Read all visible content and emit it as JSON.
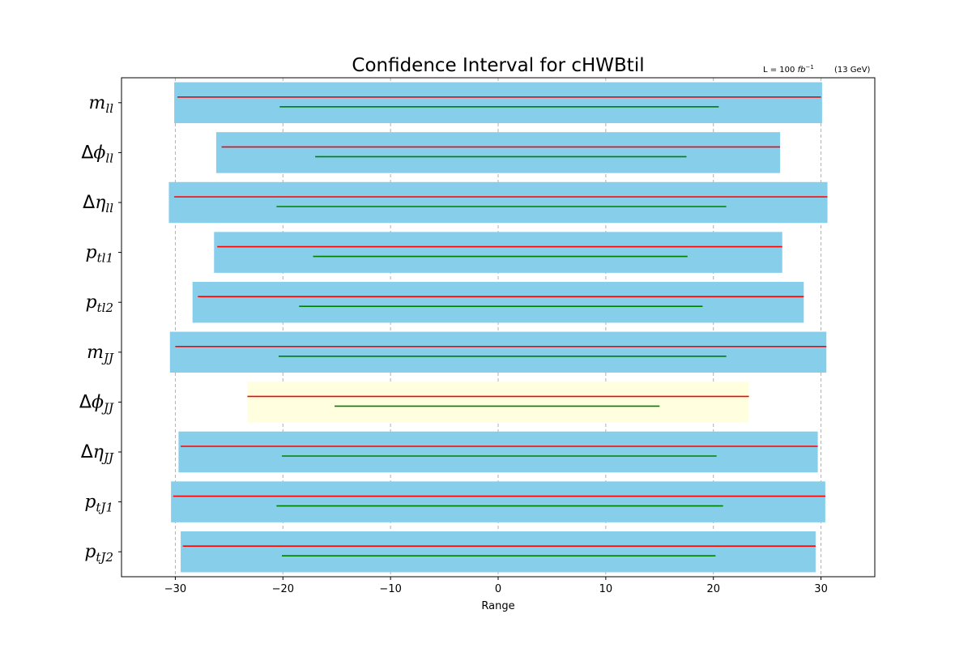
{
  "chart_data": {
    "type": "bar",
    "title": "Confidence Interval for cHWBtil",
    "xlabel": "Range",
    "note": {
      "luminosity_prefix": "L = 100 ",
      "luminosity_unit": "fb",
      "luminosity_exp": "−1",
      "energy": "(13 GeV)"
    },
    "xlim": [
      -35,
      35
    ],
    "xticks": [
      -30,
      -20,
      -10,
      0,
      10,
      20,
      30
    ],
    "xtick_labels": [
      "−30",
      "−20",
      "−10",
      "0",
      "10",
      "20",
      "30"
    ],
    "grid": "x-dashed",
    "colors": {
      "band": "#87ceeb",
      "band_highlight": "#ffffe0",
      "red_line": "#ff0000",
      "green_line": "#008000",
      "grid": "#b0b0b0"
    },
    "categories": [
      {
        "symbol": "m",
        "sub": "ll",
        "band": [
          -30.1,
          30.1
        ],
        "red": [
          -29.8,
          30.0
        ],
        "green": [
          -20.3,
          20.5
        ],
        "highlight": false
      },
      {
        "symbol": "Δϕ",
        "sub": "ll",
        "band": [
          -26.2,
          26.2
        ],
        "red": [
          -25.7,
          26.2
        ],
        "green": [
          -17.0,
          17.5
        ],
        "highlight": false
      },
      {
        "symbol": "Δη",
        "sub": "ll",
        "band": [
          -30.6,
          30.6
        ],
        "red": [
          -30.1,
          30.6
        ],
        "green": [
          -20.6,
          21.2
        ],
        "highlight": false
      },
      {
        "symbol": "p",
        "sub": "tl1",
        "band": [
          -26.4,
          26.4
        ],
        "red": [
          -26.1,
          26.4
        ],
        "green": [
          -17.2,
          17.6
        ],
        "highlight": false
      },
      {
        "symbol": "p",
        "sub": "tl2",
        "band": [
          -28.4,
          28.4
        ],
        "red": [
          -27.9,
          28.4
        ],
        "green": [
          -18.5,
          19.0
        ],
        "highlight": false
      },
      {
        "symbol": "m",
        "sub": "JJ",
        "band": [
          -30.5,
          30.5
        ],
        "red": [
          -30.0,
          30.5
        ],
        "green": [
          -20.4,
          21.2
        ],
        "highlight": false
      },
      {
        "symbol": "Δϕ",
        "sub": "JJ",
        "band": [
          -23.3,
          23.3
        ],
        "red": [
          -23.3,
          23.3
        ],
        "green": [
          -15.2,
          15.0
        ],
        "highlight": true
      },
      {
        "symbol": "Δη",
        "sub": "JJ",
        "band": [
          -29.7,
          29.7
        ],
        "red": [
          -29.5,
          29.7
        ],
        "green": [
          -20.1,
          20.3
        ],
        "highlight": false
      },
      {
        "symbol": "p",
        "sub": "tJ1",
        "band": [
          -30.4,
          30.4
        ],
        "red": [
          -30.2,
          30.4
        ],
        "green": [
          -20.6,
          20.9
        ],
        "highlight": false
      },
      {
        "symbol": "p",
        "sub": "tJ2",
        "band": [
          -29.5,
          29.5
        ],
        "red": [
          -29.3,
          29.5
        ],
        "green": [
          -20.1,
          20.2
        ],
        "highlight": false
      }
    ]
  }
}
